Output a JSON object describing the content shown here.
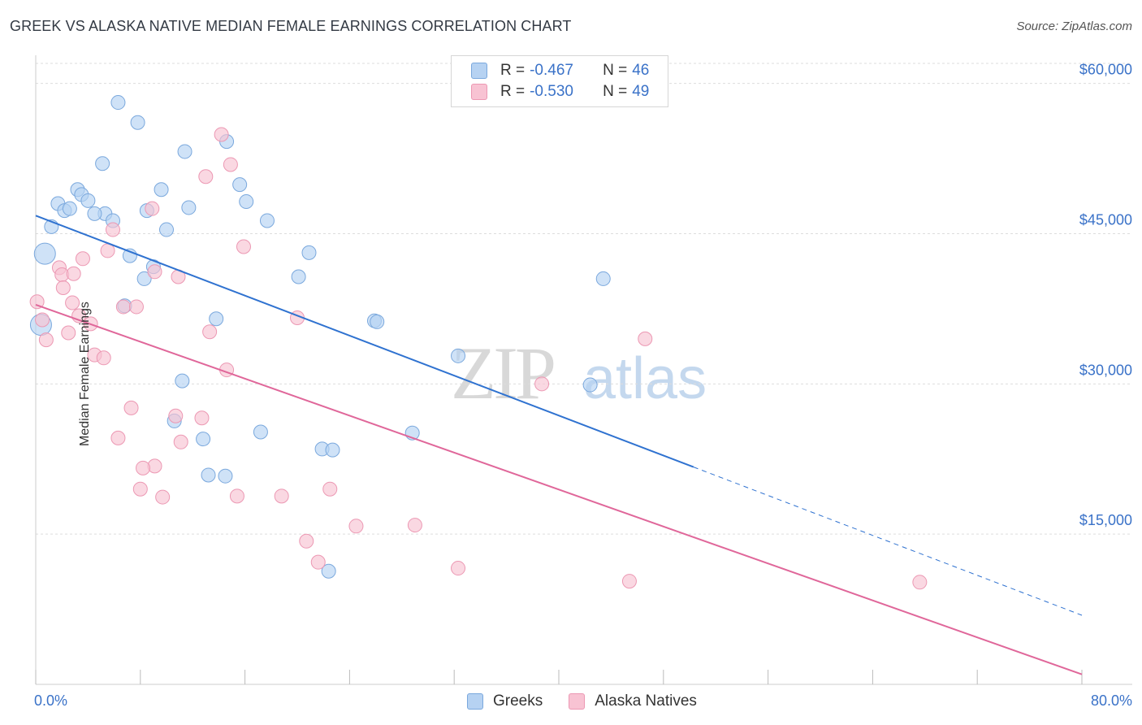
{
  "header": {
    "title": "GREEK VS ALASKA NATIVE MEDIAN FEMALE EARNINGS CORRELATION CHART",
    "source": "Source: ZipAtlas.com"
  },
  "legend": {
    "r_label": "R = ",
    "n_label": "N = ",
    "rows": [
      {
        "r": "-0.467",
        "n": "46"
      },
      {
        "r": "-0.530",
        "n": "49"
      }
    ]
  },
  "colors": {
    "blue_fill": "#b6d2f2",
    "blue_stroke": "#7aa8dd",
    "blue_line": "#2f72d0",
    "pink_fill": "#f8c3d3",
    "pink_stroke": "#ec98b3",
    "pink_line": "#e0679a",
    "tick_label": "#3a72c8",
    "grid": "#dddddd"
  },
  "chart_data": {
    "type": "scatter",
    "title": "GREEK VS ALASKA NATIVE MEDIAN FEMALE EARNINGS CORRELATION CHART",
    "xlabel": "",
    "ylabel": "Median Female Earnings",
    "xlim": [
      0,
      80
    ],
    "ylim": [
      0,
      62000
    ],
    "x_tick_labels": [
      "0.0%",
      "80.0%"
    ],
    "y_ticks": [
      15000,
      30000,
      45000,
      60000
    ],
    "y_tick_labels": [
      "$15,000",
      "$30,000",
      "$45,000",
      "$60,000"
    ],
    "grid": true,
    "legend_position": "top-center",
    "watermark": "ZIPatlas",
    "series": [
      {
        "name": "Greeks",
        "color": "#b6d2f2",
        "trend": {
          "x0": 0,
          "y0": 46800,
          "x1": 50.3,
          "y1": 21700,
          "dashed_to_x": 80,
          "dashed_to_y": 6900
        },
        "points": [
          [
            6.3,
            58100
          ],
          [
            7.8,
            56100
          ],
          [
            11.4,
            53200
          ],
          [
            14.6,
            54200
          ],
          [
            5.1,
            52000
          ],
          [
            3.2,
            49400
          ],
          [
            9.6,
            49400
          ],
          [
            3.5,
            48900
          ],
          [
            15.6,
            49900
          ],
          [
            4.0,
            48300
          ],
          [
            1.7,
            48000
          ],
          [
            2.2,
            47300
          ],
          [
            2.6,
            47500
          ],
          [
            5.3,
            47000
          ],
          [
            4.5,
            47000
          ],
          [
            8.5,
            47300
          ],
          [
            11.7,
            47600
          ],
          [
            16.1,
            48200
          ],
          [
            5.9,
            46300
          ],
          [
            17.7,
            46300
          ],
          [
            1.2,
            45700
          ],
          [
            10.0,
            45400
          ],
          [
            0.7,
            43000
          ],
          [
            7.2,
            42800
          ],
          [
            9.0,
            41700
          ],
          [
            20.9,
            43100
          ],
          [
            8.3,
            40500
          ],
          [
            20.1,
            40700
          ],
          [
            43.4,
            40500
          ],
          [
            6.8,
            37800
          ],
          [
            13.8,
            36500
          ],
          [
            25.9,
            36300
          ],
          [
            26.1,
            36200
          ],
          [
            0.4,
            35900
          ],
          [
            32.3,
            32800
          ],
          [
            11.2,
            30300
          ],
          [
            42.4,
            29900
          ],
          [
            10.6,
            26300
          ],
          [
            12.8,
            24500
          ],
          [
            17.2,
            25200
          ],
          [
            28.8,
            25100
          ],
          [
            21.9,
            23500
          ],
          [
            22.7,
            23400
          ],
          [
            13.2,
            20900
          ],
          [
            14.5,
            20800
          ],
          [
            22.4,
            11300
          ]
        ]
      },
      {
        "name": "Alaska Natives",
        "color": "#f8c3d3",
        "trend": {
          "x0": 0,
          "y0": 37900,
          "x1": 80,
          "y1": 1000
        },
        "points": [
          [
            14.2,
            54900
          ],
          [
            14.9,
            51900
          ],
          [
            13.0,
            50700
          ],
          [
            8.9,
            47500
          ],
          [
            5.9,
            45400
          ],
          [
            15.9,
            43700
          ],
          [
            5.5,
            43300
          ],
          [
            3.6,
            42500
          ],
          [
            1.8,
            41600
          ],
          [
            2.0,
            40900
          ],
          [
            2.9,
            41000
          ],
          [
            9.1,
            41200
          ],
          [
            10.9,
            40700
          ],
          [
            2.1,
            39600
          ],
          [
            0.1,
            38200
          ],
          [
            2.8,
            38100
          ],
          [
            6.7,
            37700
          ],
          [
            7.7,
            37700
          ],
          [
            3.3,
            36800
          ],
          [
            0.5,
            36400
          ],
          [
            20.0,
            36600
          ],
          [
            4.2,
            36000
          ],
          [
            2.5,
            35100
          ],
          [
            13.3,
            35200
          ],
          [
            0.8,
            34400
          ],
          [
            46.6,
            34500
          ],
          [
            4.5,
            32900
          ],
          [
            5.2,
            32600
          ],
          [
            14.6,
            31400
          ],
          [
            38.7,
            30000
          ],
          [
            7.3,
            27600
          ],
          [
            10.7,
            26800
          ],
          [
            12.7,
            26600
          ],
          [
            6.3,
            24600
          ],
          [
            11.1,
            24200
          ],
          [
            9.1,
            21800
          ],
          [
            8.2,
            21600
          ],
          [
            8.0,
            19500
          ],
          [
            9.7,
            18700
          ],
          [
            15.4,
            18800
          ],
          [
            18.8,
            18800
          ],
          [
            22.5,
            19500
          ],
          [
            24.5,
            15800
          ],
          [
            29.0,
            15900
          ],
          [
            20.7,
            14300
          ],
          [
            21.6,
            12200
          ],
          [
            32.3,
            11600
          ],
          [
            45.4,
            10300
          ],
          [
            67.6,
            10200
          ]
        ]
      }
    ]
  },
  "bottom_legend": [
    {
      "label": "Greeks"
    },
    {
      "label": "Alaska Natives"
    }
  ]
}
